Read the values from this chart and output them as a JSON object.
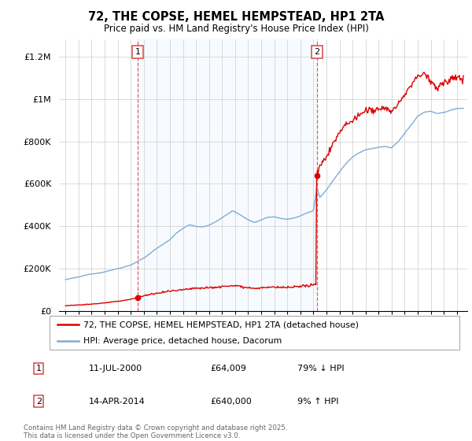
{
  "title": "72, THE COPSE, HEMEL HEMPSTEAD, HP1 2TA",
  "subtitle": "Price paid vs. HM Land Registry's House Price Index (HPI)",
  "legend_label1": "72, THE COPSE, HEMEL HEMPSTEAD, HP1 2TA (detached house)",
  "legend_label2": "HPI: Average price, detached house, Dacorum",
  "annotation1_label": "1",
  "annotation1_date": "11-JUL-2000",
  "annotation1_price": "£64,009",
  "annotation1_hpi": "79% ↓ HPI",
  "annotation2_label": "2",
  "annotation2_date": "14-APR-2014",
  "annotation2_price": "£640,000",
  "annotation2_hpi": "9% ↑ HPI",
  "footer": "Contains HM Land Registry data © Crown copyright and database right 2025.\nThis data is licensed under the Open Government Licence v3.0.",
  "sale1_x": 2000.53,
  "sale1_y": 64009,
  "sale2_x": 2014.28,
  "sale2_y": 640000,
  "color_sale": "#dd0000",
  "color_hpi": "#7eadd4",
  "color_vline": "#dd4444",
  "color_bg_shade": "#ddeeff",
  "ylim_max": 1280000,
  "xlim_min": 1994.5,
  "xlim_max": 2025.8,
  "yticks": [
    0,
    200000,
    400000,
    600000,
    800000,
    1000000,
    1200000
  ],
  "ytick_labels": [
    "£0",
    "£200K",
    "£400K",
    "£600K",
    "£800K",
    "£1M",
    "£1.2M"
  ],
  "hpi_keypoints": [
    [
      1995.0,
      148000
    ],
    [
      1996.0,
      158000
    ],
    [
      1997.0,
      172000
    ],
    [
      1998.0,
      185000
    ],
    [
      1999.0,
      200000
    ],
    [
      2000.0,
      218000
    ],
    [
      2001.0,
      248000
    ],
    [
      2002.0,
      295000
    ],
    [
      2003.0,
      338000
    ],
    [
      2003.5,
      368000
    ],
    [
      2004.0,
      390000
    ],
    [
      2004.5,
      408000
    ],
    [
      2005.0,
      400000
    ],
    [
      2005.5,
      395000
    ],
    [
      2006.0,
      405000
    ],
    [
      2006.5,
      420000
    ],
    [
      2007.0,
      440000
    ],
    [
      2007.5,
      460000
    ],
    [
      2007.8,
      475000
    ],
    [
      2008.0,
      468000
    ],
    [
      2008.5,
      450000
    ],
    [
      2009.0,
      430000
    ],
    [
      2009.5,
      420000
    ],
    [
      2010.0,
      432000
    ],
    [
      2010.5,
      445000
    ],
    [
      2011.0,
      448000
    ],
    [
      2011.5,
      440000
    ],
    [
      2012.0,
      438000
    ],
    [
      2012.5,
      445000
    ],
    [
      2013.0,
      455000
    ],
    [
      2013.5,
      468000
    ],
    [
      2014.0,
      480000
    ],
    [
      2014.28,
      588000
    ],
    [
      2014.5,
      540000
    ],
    [
      2015.0,
      575000
    ],
    [
      2015.5,
      620000
    ],
    [
      2016.0,
      660000
    ],
    [
      2016.5,
      700000
    ],
    [
      2017.0,
      730000
    ],
    [
      2017.5,
      750000
    ],
    [
      2018.0,
      765000
    ],
    [
      2018.5,
      770000
    ],
    [
      2019.0,
      775000
    ],
    [
      2019.5,
      778000
    ],
    [
      2020.0,
      770000
    ],
    [
      2020.5,
      800000
    ],
    [
      2021.0,
      840000
    ],
    [
      2021.5,
      880000
    ],
    [
      2022.0,
      920000
    ],
    [
      2022.5,
      940000
    ],
    [
      2023.0,
      945000
    ],
    [
      2023.5,
      935000
    ],
    [
      2024.0,
      940000
    ],
    [
      2024.5,
      950000
    ],
    [
      2025.0,
      960000
    ],
    [
      2025.5,
      958000
    ]
  ],
  "prop_keypoints_before_sale1": [
    [
      1995.0,
      25000
    ],
    [
      1996.0,
      28000
    ],
    [
      1997.0,
      32000
    ],
    [
      1998.0,
      38000
    ],
    [
      1999.0,
      45000
    ],
    [
      2000.0,
      55000
    ],
    [
      2000.53,
      64009
    ]
  ],
  "prop_keypoints_between_sales": [
    [
      2000.53,
      64009
    ],
    [
      2001.0,
      72000
    ],
    [
      2002.0,
      82000
    ],
    [
      2003.0,
      93000
    ],
    [
      2004.0,
      102000
    ],
    [
      2005.0,
      108000
    ],
    [
      2006.0,
      110000
    ],
    [
      2007.0,
      114000
    ],
    [
      2007.8,
      120000
    ],
    [
      2008.5,
      116000
    ],
    [
      2009.0,
      110000
    ],
    [
      2009.5,
      106000
    ],
    [
      2010.0,
      108000
    ],
    [
      2011.0,
      112000
    ],
    [
      2012.0,
      110000
    ],
    [
      2013.0,
      114000
    ],
    [
      2013.5,
      118000
    ],
    [
      2014.0,
      125000
    ],
    [
      2014.28,
      125000
    ]
  ],
  "prop_keypoints_after_sale2": [
    [
      2014.28,
      640000
    ],
    [
      2014.5,
      680000
    ],
    [
      2015.0,
      730000
    ],
    [
      2015.5,
      790000
    ],
    [
      2016.0,
      840000
    ],
    [
      2016.5,
      880000
    ],
    [
      2017.0,
      900000
    ],
    [
      2017.5,
      920000
    ],
    [
      2018.0,
      945000
    ],
    [
      2018.5,
      945000
    ],
    [
      2019.0,
      950000
    ],
    [
      2019.5,
      958000
    ],
    [
      2020.0,
      940000
    ],
    [
      2020.5,
      975000
    ],
    [
      2021.0,
      1020000
    ],
    [
      2021.5,
      1065000
    ],
    [
      2022.0,
      1110000
    ],
    [
      2022.5,
      1120000
    ],
    [
      2023.0,
      1080000
    ],
    [
      2023.5,
      1050000
    ],
    [
      2024.0,
      1080000
    ],
    [
      2024.5,
      1090000
    ],
    [
      2025.0,
      1105000
    ],
    [
      2025.5,
      1095000
    ]
  ]
}
